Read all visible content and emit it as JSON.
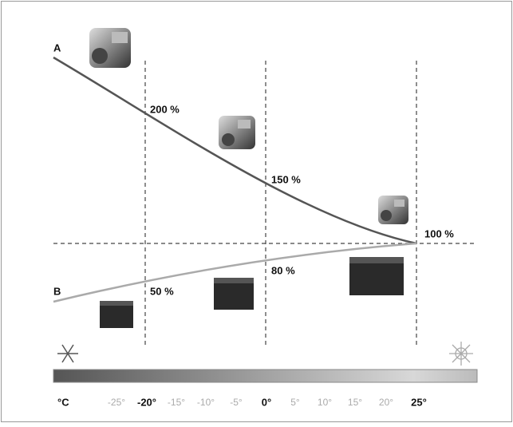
{
  "curves": {
    "a": {
      "label": "A",
      "points": [
        "200 %",
        "150 %",
        "100 %"
      ]
    },
    "b": {
      "label": "B",
      "points": [
        "50 %",
        "80 %"
      ]
    }
  },
  "scale": {
    "unit": "°C",
    "ticks": [
      "-25°",
      "-20°",
      "-15°",
      "-10°",
      "-5°",
      "0°",
      "5°",
      "10°",
      "15°",
      "20°",
      "25°"
    ]
  }
}
